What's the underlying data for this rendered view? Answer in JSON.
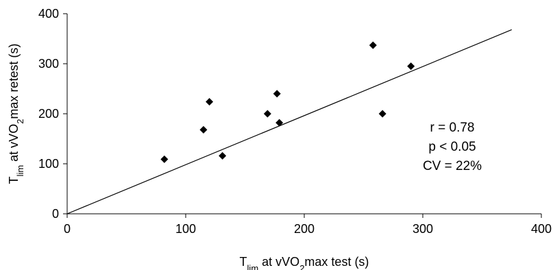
{
  "chart_data": {
    "type": "scatter",
    "title": "",
    "xlabel": {
      "parts": [
        {
          "text": "T",
          "sub": false
        },
        {
          "text": "lim",
          "sub": true
        },
        {
          "text": " at vVO",
          "sub": false
        },
        {
          "text": "2",
          "sub": true
        },
        {
          "text": "max test (s)",
          "sub": false
        }
      ]
    },
    "ylabel": {
      "parts": [
        {
          "text": "T",
          "sub": false
        },
        {
          "text": "lim",
          "sub": true
        },
        {
          "text": " at vVO",
          "sub": false
        },
        {
          "text": "2",
          "sub": true
        },
        {
          "text": "max retest (s)",
          "sub": false
        }
      ]
    },
    "xlim": [
      0,
      400
    ],
    "ylim": [
      0,
      400
    ],
    "x_ticks": [
      0,
      100,
      200,
      300,
      400
    ],
    "y_ticks": [
      0,
      100,
      200,
      300,
      400
    ],
    "x_tick_labels": [
      "0",
      "100",
      "200",
      "300",
      "400"
    ],
    "y_tick_labels": [
      "0",
      "100",
      "200",
      "300",
      "400"
    ],
    "grid": false,
    "legend": "none",
    "marker": "diamond",
    "marker_color": "#000000",
    "points": [
      {
        "x": 82,
        "y": 109
      },
      {
        "x": 115,
        "y": 168
      },
      {
        "x": 120,
        "y": 224
      },
      {
        "x": 131,
        "y": 116
      },
      {
        "x": 169,
        "y": 200
      },
      {
        "x": 177,
        "y": 240
      },
      {
        "x": 179,
        "y": 182
      },
      {
        "x": 258,
        "y": 337
      },
      {
        "x": 266,
        "y": 200
      },
      {
        "x": 290,
        "y": 295
      }
    ],
    "fit_line": {
      "x": [
        0,
        375
      ],
      "y": [
        0,
        368
      ]
    },
    "annotations": [
      "r = 0.78",
      "p < 0.05",
      "CV = 22%"
    ]
  }
}
